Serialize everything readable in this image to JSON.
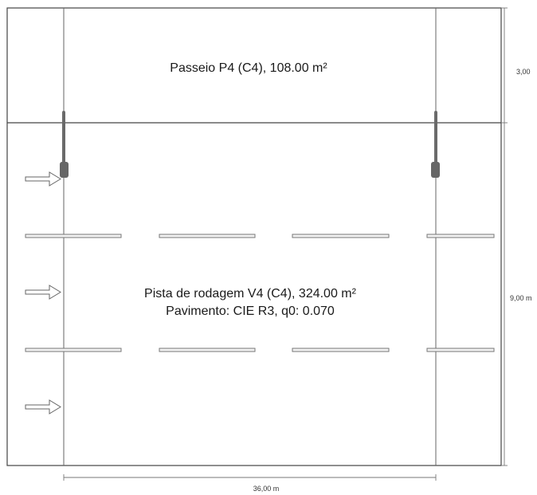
{
  "sidewalk": {
    "label": "Passeio P4 (C4), 108.00 m²"
  },
  "roadway": {
    "label_line1": "Pista de rodagem V4 (C4), 324.00 m²",
    "label_line2": "Pavimento: CIE R3, q0: 0.070"
  },
  "dimensions": {
    "sidewalk_width": "3,00",
    "roadway_width": "9,00 m",
    "length": "36,00 m"
  },
  "lane_markings": {
    "rows": 2,
    "dashes_per_row": 4
  },
  "traffic_arrows": {
    "count": 3,
    "direction": "right"
  },
  "luminaires": {
    "count": 2
  }
}
